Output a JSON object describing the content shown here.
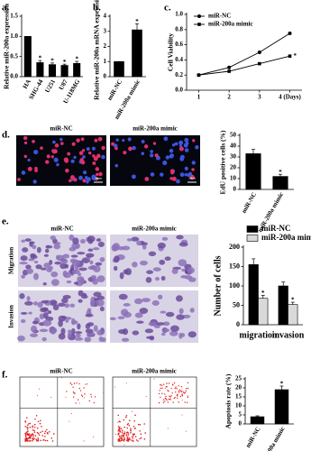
{
  "panel_labels": [
    "a.",
    "b.",
    "c.",
    "d.",
    "e.",
    "f."
  ],
  "images": {
    "d_columns": [
      "miR-NC",
      "miR-200a mimic"
    ],
    "e_columns": [
      "miR-NC",
      "miR-200a mimic"
    ],
    "e_rows": [
      "Migration",
      "Invasion"
    ],
    "f_columns": [
      "miR-NC",
      "miR-200a mimic"
    ],
    "scale_bar": "50μm"
  },
  "chart_data": [
    {
      "type": "bar",
      "ylabel": "Relative miR-200a expression",
      "categories": [
        "HA",
        "SHG-44",
        "U251",
        "U87",
        "U-118MG"
      ],
      "values": [
        1.0,
        0.35,
        0.3,
        0.28,
        0.33
      ],
      "errors": [
        0,
        0.05,
        0.04,
        0.03,
        0.05
      ],
      "significance": [
        null,
        "*",
        "*",
        "*",
        "*"
      ],
      "color": "#000000",
      "ylim": [
        0,
        1.5
      ],
      "yticks": [
        {
          "value": 0,
          "label": "0.0"
        },
        {
          "value": 0.5,
          "label": "0.5"
        },
        {
          "value": 1,
          "label": "1.0"
        },
        {
          "value": 1.5,
          "label": "1.5"
        }
      ]
    },
    {
      "type": "bar",
      "ylabel": "Relative miR-200a mRNA expression",
      "categories": [
        "miR-NC",
        "miR-200a mimic"
      ],
      "values": [
        1.0,
        3.1
      ],
      "errors": [
        0,
        0.4
      ],
      "significance": [
        null,
        "*"
      ],
      "color": "#000000",
      "ylim": [
        0,
        4
      ],
      "yticks": [
        0,
        1,
        2,
        3,
        4
      ]
    },
    {
      "type": "line",
      "ylabel": "Cell Viability",
      "x": [
        1,
        2,
        3,
        4
      ],
      "xlim": [
        0.6,
        4.4
      ],
      "xticks": [
        1,
        2,
        3,
        {
          "value": 4,
          "label": "4 (Days)"
        }
      ],
      "ylim": [
        0,
        1.0
      ],
      "yticks": [
        {
          "value": 0,
          "label": "0.0"
        },
        {
          "value": 0.2,
          "label": "0.2"
        },
        {
          "value": 0.4,
          "label": "0.4"
        },
        {
          "value": 0.6,
          "label": "0.6"
        },
        {
          "value": 0.8,
          "label": "0.8"
        },
        {
          "value": 1,
          "label": "1.0"
        }
      ],
      "legend": "upper left",
      "series": [
        {
          "name": "miR-NC",
          "color": "#000000",
          "marker": "circle",
          "values": [
            0.2,
            0.3,
            0.5,
            0.75
          ]
        },
        {
          "name": "miR-200a mimic",
          "color": "#000000",
          "marker": "square",
          "values": [
            0.2,
            0.25,
            0.35,
            0.45
          ],
          "significance": [
            null,
            null,
            null,
            "*"
          ]
        }
      ]
    },
    {
      "type": "bar",
      "ylabel": "EdU positive cells (%)",
      "categories": [
        "miR-NC",
        "miR-200a mimic"
      ],
      "values": [
        33,
        12
      ],
      "errors": [
        4,
        2
      ],
      "significance": [
        null,
        "*"
      ],
      "color": "#000000",
      "ylim": [
        0,
        50
      ],
      "yticks": [
        0,
        10,
        20,
        30,
        40,
        50
      ]
    },
    {
      "type": "bar",
      "ylabel": "Number of cells",
      "categories": [
        "migration",
        "invasion"
      ],
      "ylim": [
        0,
        200
      ],
      "yticks": [
        0,
        50,
        100,
        150,
        200
      ],
      "legend": "upper right",
      "series": [
        {
          "name": "miR-NC",
          "color": "#000000",
          "values": [
            155,
            100
          ],
          "errors": [
            15,
            10
          ]
        },
        {
          "name": "miR-200a mimic",
          "color": "#d9d9d9",
          "values": [
            68,
            52
          ],
          "errors": [
            8,
            6
          ],
          "significance": [
            "*",
            "*"
          ]
        }
      ]
    },
    {
      "type": "bar",
      "ylabel": "Apoptosis rate (%)",
      "categories": [
        "miR-NC",
        "miR-200a mimic"
      ],
      "values": [
        4,
        19
      ],
      "errors": [
        0.5,
        2
      ],
      "significance": [
        null,
        "*"
      ],
      "color": "#000000",
      "ylim": [
        0,
        25
      ],
      "yticks": [
        0,
        5,
        10,
        15,
        20,
        25
      ]
    }
  ]
}
